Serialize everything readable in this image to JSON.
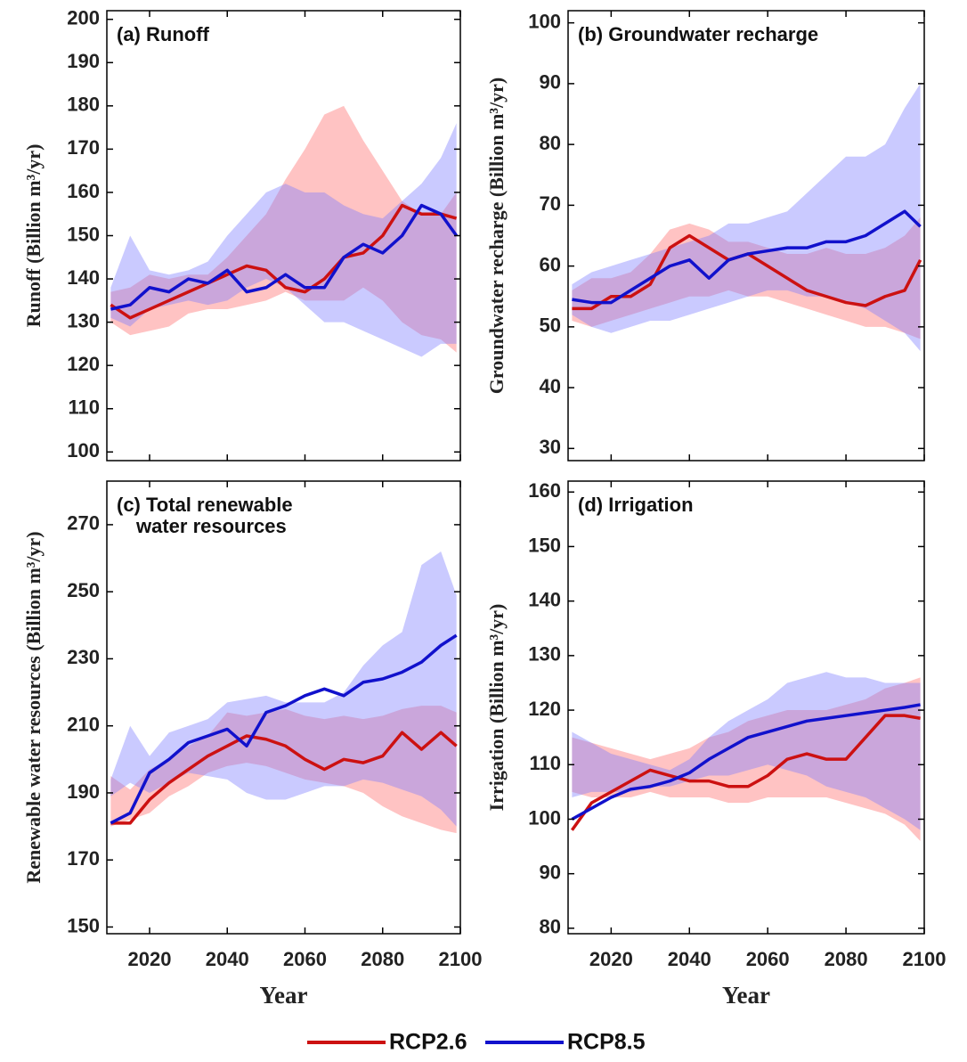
{
  "chart_data": [
    {
      "type": "line",
      "title": [
        "(a) Runoff"
      ],
      "ylabel": "Runoff (Billion m³/yr)",
      "show_xtick_labels": false,
      "x": [
        2010,
        2015,
        2020,
        2025,
        2030,
        2035,
        2040,
        2045,
        2050,
        2055,
        2060,
        2065,
        2070,
        2075,
        2080,
        2085,
        2090,
        2095,
        2099
      ],
      "xlim": [
        2009,
        2100
      ],
      "xticks": [
        2020,
        2040,
        2060,
        2080,
        2100
      ],
      "ylim": [
        98,
        202
      ],
      "yticks": [
        100,
        110,
        120,
        130,
        140,
        150,
        160,
        170,
        180,
        190,
        200
      ],
      "series": [
        {
          "color": "#cc1111",
          "band_color": "#ff6a6a",
          "values": [
            134,
            131,
            133,
            135,
            137,
            139,
            141,
            143,
            142,
            138,
            137,
            140,
            145,
            146,
            150,
            157,
            155,
            155,
            154
          ],
          "lower": [
            130,
            127,
            128,
            129,
            132,
            133,
            133,
            134,
            135,
            137,
            135,
            135,
            135,
            138,
            135,
            130,
            127,
            126,
            123
          ],
          "upper": [
            137,
            138,
            141,
            140,
            141,
            141,
            145,
            150,
            155,
            163,
            170,
            178,
            180,
            172,
            165,
            158,
            155,
            155,
            160
          ]
        },
        {
          "color": "#1111cc",
          "band_color": "#7a7aff",
          "values": [
            133,
            134,
            138,
            137,
            140,
            139,
            142,
            137,
            138,
            141,
            138,
            138,
            145,
            148,
            146,
            150,
            157,
            155,
            150
          ],
          "lower": [
            131,
            129,
            133,
            134,
            135,
            134,
            135,
            138,
            140,
            138,
            134,
            130,
            130,
            128,
            126,
            124,
            122,
            125,
            125
          ],
          "upper": [
            138,
            150,
            142,
            141,
            142,
            144,
            150,
            155,
            160,
            162,
            160,
            160,
            157,
            155,
            154,
            158,
            162,
            168,
            176
          ]
        }
      ]
    },
    {
      "type": "line",
      "title": [
        "(b) Groundwater recharge"
      ],
      "ylabel": "Groundwater recharge (Billion m³/yr)",
      "show_xtick_labels": false,
      "x": [
        2010,
        2015,
        2020,
        2025,
        2030,
        2035,
        2040,
        2045,
        2050,
        2055,
        2060,
        2065,
        2070,
        2075,
        2080,
        2085,
        2090,
        2095,
        2099
      ],
      "xlim": [
        2009,
        2100
      ],
      "xticks": [
        2020,
        2040,
        2060,
        2080,
        2100
      ],
      "ylim": [
        28,
        102
      ],
      "yticks": [
        30,
        40,
        50,
        60,
        70,
        80,
        90,
        100
      ],
      "series": [
        {
          "color": "#cc1111",
          "band_color": "#ff6a6a",
          "values": [
            53,
            53,
            55,
            55,
            57,
            63,
            65,
            63,
            61,
            62,
            60,
            58,
            56,
            55,
            54,
            53.5,
            55,
            56,
            61
          ],
          "lower": [
            51,
            50,
            51,
            52,
            53,
            54,
            55,
            55,
            56,
            55,
            55,
            54,
            53,
            52,
            51,
            50,
            50,
            49,
            48
          ],
          "upper": [
            56,
            58,
            58,
            59,
            62,
            66,
            67,
            66,
            64,
            64,
            63,
            62,
            62,
            63,
            62,
            62,
            63,
            65,
            68
          ]
        },
        {
          "color": "#1111cc",
          "band_color": "#7a7aff",
          "values": [
            54.5,
            54,
            54,
            56,
            58,
            60,
            61,
            58,
            61,
            62,
            62.5,
            63,
            63,
            64,
            64,
            65,
            67,
            69,
            66.5
          ],
          "lower": [
            52,
            50,
            49,
            50,
            51,
            51,
            52,
            53,
            54,
            55,
            56,
            56,
            55,
            55,
            54,
            53,
            51,
            49,
            46
          ],
          "upper": [
            57,
            59,
            60,
            61,
            62,
            63,
            64,
            65,
            67,
            67,
            68,
            69,
            72,
            75,
            78,
            78,
            80,
            86,
            90
          ]
        }
      ]
    },
    {
      "type": "line",
      "title": [
        "(c) Total renewable",
        "water resources"
      ],
      "ylabel": "Renewable water resources (Billion m³/yr)",
      "xlabel": "Year",
      "show_xtick_labels": true,
      "x": [
        2010,
        2015,
        2020,
        2025,
        2030,
        2035,
        2040,
        2045,
        2050,
        2055,
        2060,
        2065,
        2070,
        2075,
        2080,
        2085,
        2090,
        2095,
        2099
      ],
      "xlim": [
        2009,
        2100
      ],
      "xticks": [
        2020,
        2040,
        2060,
        2080,
        2100
      ],
      "ylim": [
        148,
        283
      ],
      "yticks": [
        150,
        170,
        190,
        210,
        230,
        250,
        270
      ],
      "series": [
        {
          "color": "#cc1111",
          "band_color": "#ff6a6a",
          "values": [
            181,
            181,
            188,
            193,
            197,
            201,
            204,
            207,
            206,
            204,
            200,
            197,
            200,
            199,
            201,
            208,
            203,
            208,
            204
          ],
          "lower": [
            180,
            182,
            184,
            189,
            192,
            196,
            198,
            199,
            198,
            196,
            194,
            193,
            192,
            190,
            186,
            183,
            181,
            179,
            178
          ],
          "upper": [
            195,
            191,
            197,
            200,
            204,
            207,
            214,
            213,
            214,
            215,
            213,
            212,
            213,
            212,
            213,
            215,
            216,
            216,
            214
          ]
        },
        {
          "color": "#1111cc",
          "band_color": "#7a7aff",
          "values": [
            181,
            184,
            196,
            200,
            205,
            207,
            209,
            204,
            214,
            216,
            219,
            221,
            219,
            223,
            224,
            226,
            229,
            234,
            237
          ],
          "lower": [
            189,
            193,
            190,
            193,
            196,
            195,
            194,
            190,
            188,
            188,
            190,
            192,
            192,
            194,
            193,
            191,
            189,
            185,
            180
          ],
          "upper": [
            194,
            210,
            201,
            208,
            210,
            212,
            217,
            218,
            219,
            217,
            217,
            217,
            220,
            228,
            234,
            238,
            258,
            262,
            249
          ]
        }
      ]
    },
    {
      "type": "line",
      "title": [
        "(d) Irrigation"
      ],
      "ylabel": "Irrigation (Billion m³/yr)",
      "xlabel": "Year",
      "show_xtick_labels": true,
      "x": [
        2010,
        2015,
        2020,
        2025,
        2030,
        2035,
        2040,
        2045,
        2050,
        2055,
        2060,
        2065,
        2070,
        2075,
        2080,
        2085,
        2090,
        2095,
        2099
      ],
      "xlim": [
        2009,
        2100
      ],
      "xticks": [
        2020,
        2040,
        2060,
        2080,
        2100
      ],
      "ylim": [
        79,
        162
      ],
      "yticks": [
        80,
        90,
        100,
        110,
        120,
        130,
        140,
        150,
        160
      ],
      "series": [
        {
          "color": "#cc1111",
          "band_color": "#ff6a6a",
          "values": [
            98,
            103,
            105,
            107,
            109,
            108,
            107,
            107,
            106,
            106,
            108,
            111,
            112,
            111,
            111,
            115,
            119,
            119,
            118.5
          ],
          "lower": [
            105,
            104,
            104,
            104,
            105,
            104,
            104,
            104,
            103,
            103,
            104,
            104,
            104,
            104,
            103,
            102,
            101,
            99,
            96
          ],
          "upper": [
            115,
            114,
            113,
            112,
            111,
            112,
            113,
            115,
            116,
            118,
            119,
            120,
            120,
            120,
            121,
            122,
            124,
            125,
            126
          ]
        },
        {
          "color": "#1111cc",
          "band_color": "#7a7aff",
          "values": [
            100,
            102,
            104,
            105.5,
            106,
            107,
            108.5,
            111,
            113,
            115,
            116,
            117,
            118,
            118.5,
            119,
            119.5,
            120,
            120.5,
            121
          ],
          "lower": [
            104,
            105,
            105,
            105,
            106,
            106,
            107,
            108,
            108,
            109,
            110,
            109,
            108,
            106,
            105,
            104,
            102,
            100,
            98
          ],
          "upper": [
            116,
            114,
            112,
            111,
            110,
            109,
            111,
            115,
            118,
            120,
            122,
            125,
            126,
            127,
            126,
            126,
            125,
            125,
            125
          ]
        }
      ]
    }
  ],
  "legend": [
    {
      "name": "RCP2.6",
      "color": "#cc1111"
    },
    {
      "name": "RCP8.5",
      "color": "#1111cc"
    }
  ]
}
